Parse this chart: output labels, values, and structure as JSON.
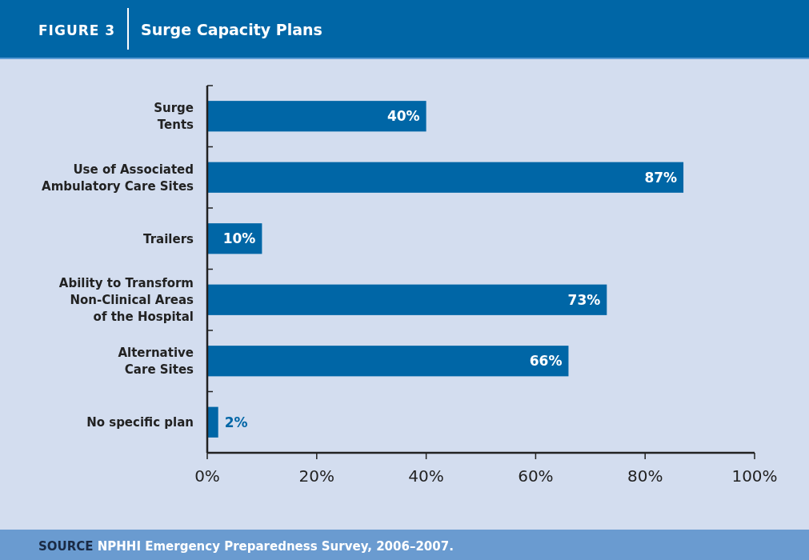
{
  "chart_data": {
    "type": "bar",
    "orientation": "horizontal",
    "title": "Surge Capacity Plans",
    "categories": [
      "Surge\nTents",
      "Use of Associated\nAmbulatory Care Sites",
      "Trailers",
      "Ability to Transform\nNon-Clinical Areas\nof the Hospital",
      "Alternative\nCare Sites",
      "No specific plan"
    ],
    "values": [
      40,
      87,
      10,
      73,
      66,
      2
    ],
    "value_labels": [
      "40%",
      "87%",
      "10%",
      "73%",
      "66%",
      "2%"
    ],
    "color": "#0066a6",
    "xlim": [
      0,
      100
    ],
    "xticks": [
      {
        "value": 0,
        "label": "0%"
      },
      {
        "value": 20,
        "label": "20%"
      },
      {
        "value": 40,
        "label": "40%"
      },
      {
        "value": 60,
        "label": "60%"
      },
      {
        "value": 80,
        "label": "80%"
      },
      {
        "value": 100,
        "label": "100%"
      }
    ],
    "grid": false,
    "annotations": [
      "FIGURE 3",
      "SOURCE NPHHI Emergency Preparedness Survey, 2006–2007."
    ]
  }
}
